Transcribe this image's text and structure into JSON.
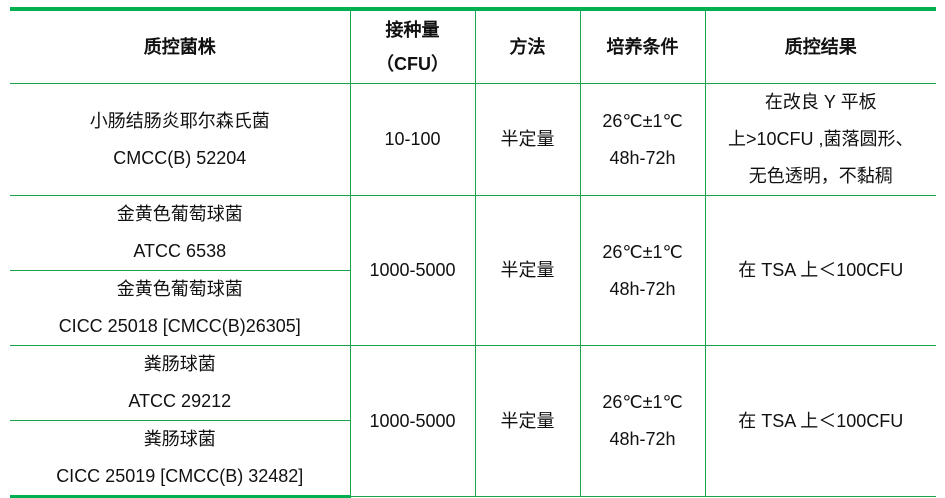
{
  "headers": [
    "质控菌株",
    "接种量",
    "（CFU）",
    "方法",
    "培养条件",
    "质控结果"
  ],
  "rows": [
    {
      "strain": [
        "小肠结肠炎耶尔森氏菌",
        "CMCC(B) 52204"
      ],
      "inoculum": "10-100",
      "method": "半定量",
      "conditions": [
        "26℃±1℃",
        "48h-72h"
      ],
      "result": [
        "在改良 Y 平板",
        "上>10CFU ,菌落圆形、",
        "无色透明，不黏稠"
      ]
    },
    {
      "strains": [
        [
          "金黄色葡萄球菌",
          "ATCC 6538"
        ],
        [
          "金黄色葡萄球菌",
          "CICC 25018 [CMCC(B)26305]"
        ]
      ],
      "inoculum": "1000-5000",
      "method": "半定量",
      "conditions": [
        "26℃±1℃",
        "48h-72h"
      ],
      "result": "在 TSA 上＜100CFU"
    },
    {
      "strains": [
        [
          "粪肠球菌",
          "ATCC 29212"
        ],
        [
          "粪肠球菌",
          "CICC 25019 [CMCC(B) 32482]"
        ]
      ],
      "inoculum": "1000-5000",
      "method": "半定量",
      "conditions": [
        "26℃±1℃",
        "48h-72h"
      ],
      "result": "在 TSA 上＜100CFU"
    }
  ]
}
